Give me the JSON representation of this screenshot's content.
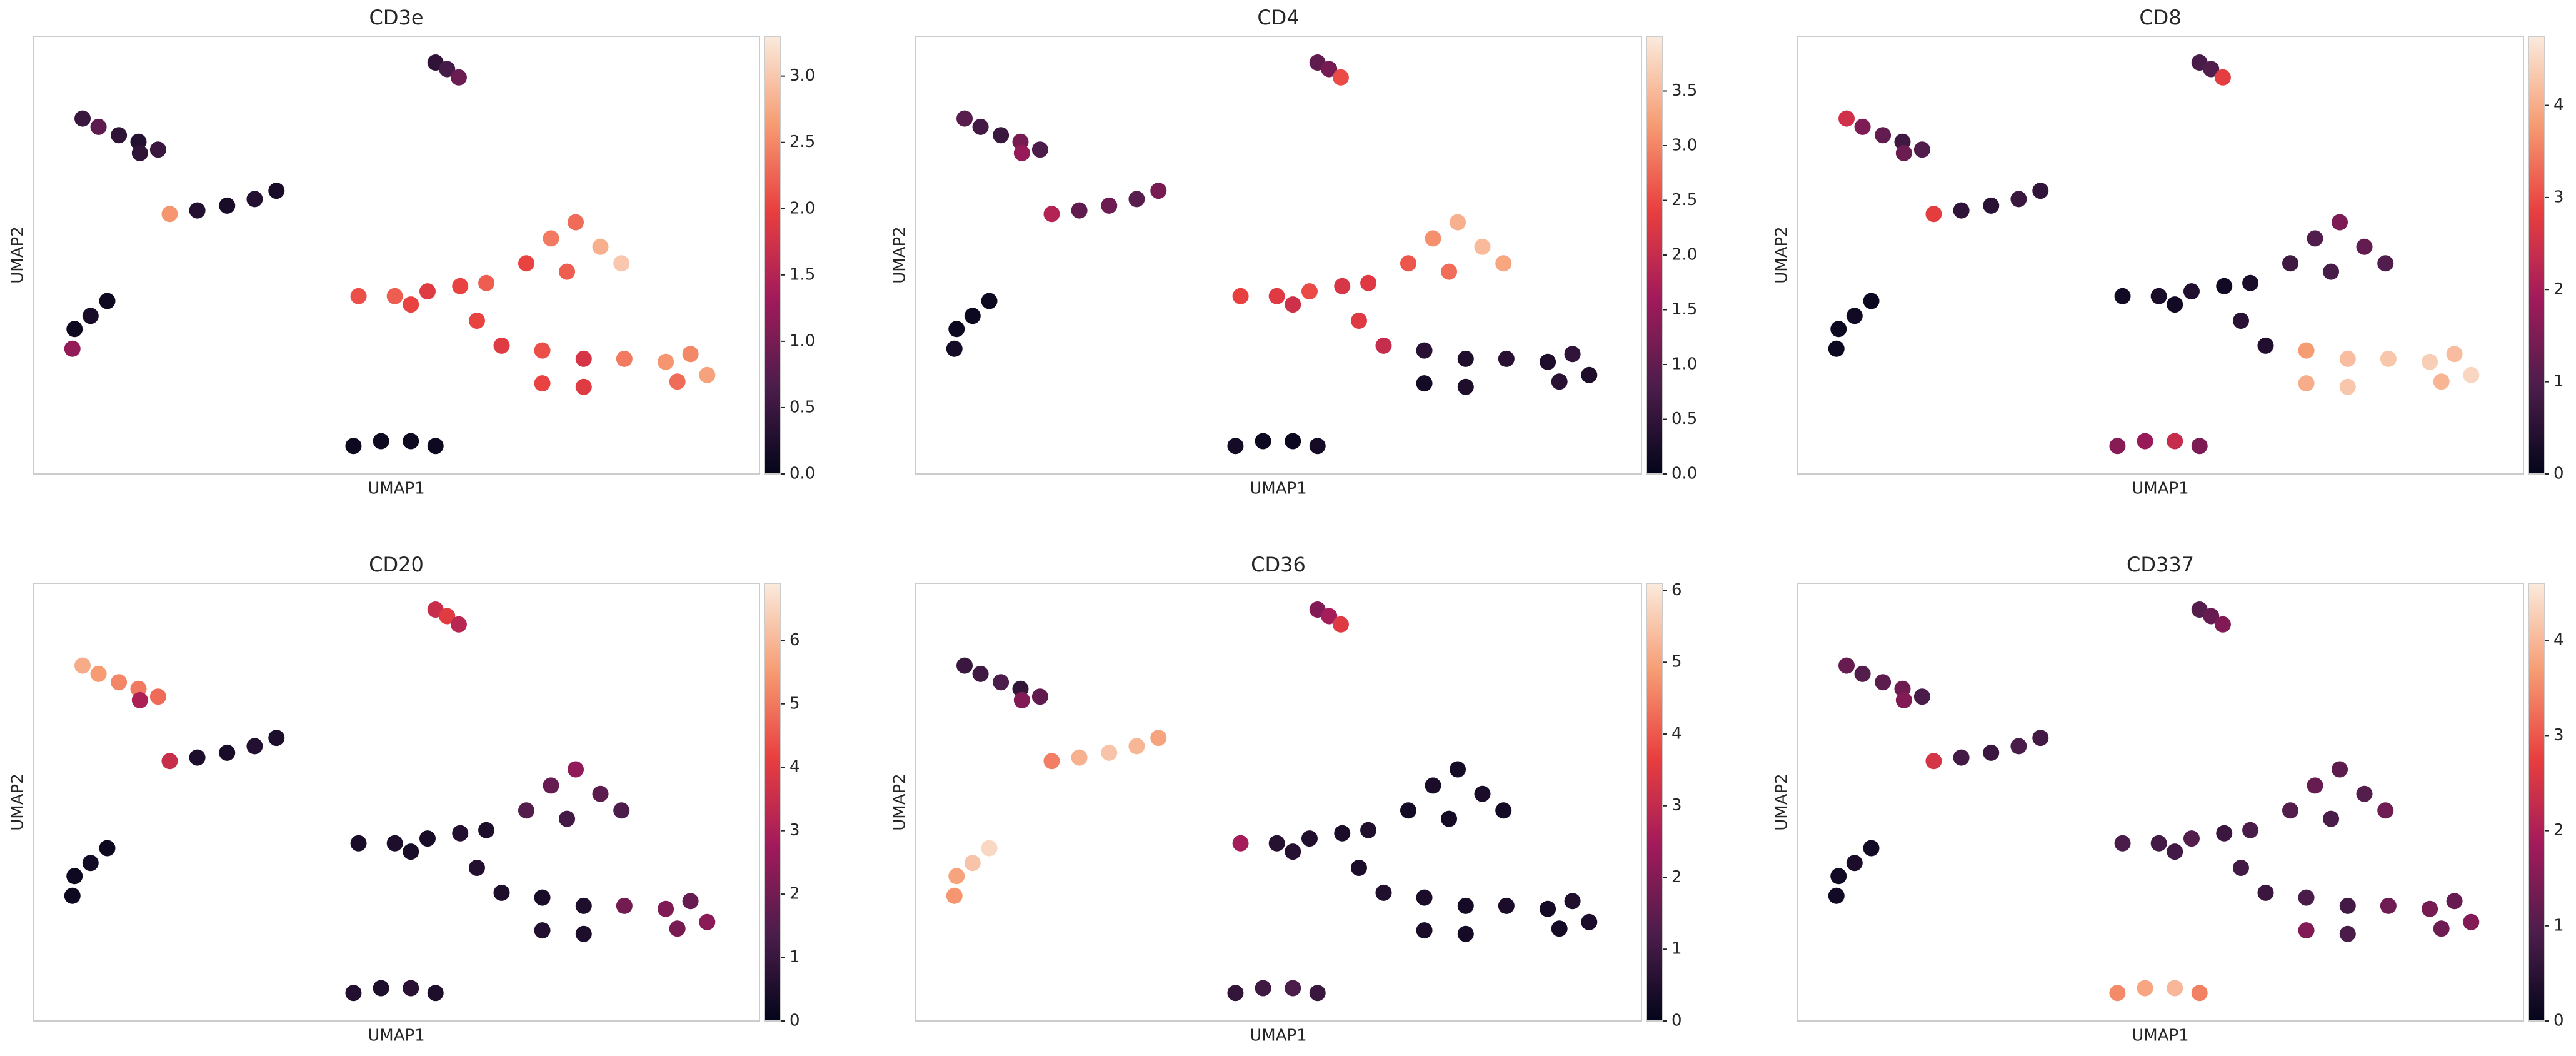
{
  "chart_data": [
    {
      "type": "scatter",
      "title": "CD3e",
      "xlabel": "UMAP1",
      "ylabel": "UMAP2",
      "colormap": "rocket",
      "xlim": [
        0,
        100
      ],
      "ylim": [
        0,
        100
      ],
      "x": [
        55.4,
        57.0,
        58.6,
        6.8,
        9.0,
        11.8,
        14.5,
        17.2,
        14.7,
        18.8,
        22.6,
        26.7,
        30.5,
        33.5,
        10.2,
        7.9,
        5.7,
        5.4,
        44.1,
        47.9,
        52.0,
        55.4,
        44.8,
        49.8,
        54.3,
        58.8,
        62.4,
        52.0,
        67.9,
        71.3,
        74.7,
        78.1,
        81.0,
        73.5,
        61.1,
        64.5,
        70.1,
        75.8,
        70.1,
        75.8,
        81.4,
        87.1,
        90.5,
        92.8,
        88.7
      ],
      "y": [
        94.0,
        92.5,
        90.6,
        81.2,
        79.3,
        77.4,
        75.9,
        74.1,
        73.3,
        59.4,
        60.2,
        61.3,
        62.8,
        64.7,
        39.5,
        36.1,
        33.1,
        28.6,
        6.4,
        7.5,
        7.5,
        6.4,
        40.6,
        40.6,
        41.7,
        42.9,
        43.6,
        38.7,
        48.1,
        53.8,
        57.5,
        51.9,
        48.1,
        46.2,
        35.0,
        29.3,
        28.2,
        26.3,
        20.7,
        19.9,
        26.3,
        25.6,
        27.4,
        22.6,
        21.1
      ],
      "values": [
        0.4,
        0.6,
        0.9,
        0.5,
        0.8,
        0.4,
        0.3,
        0.5,
        0.4,
        2.6,
        0.3,
        0.2,
        0.3,
        0.2,
        0.1,
        0.2,
        0.1,
        1.2,
        0.1,
        0.1,
        0.1,
        0.1,
        2.1,
        2.2,
        1.9,
        2.0,
        2.2,
        2.0,
        2.0,
        2.4,
        2.3,
        2.8,
        3.0,
        2.2,
        2.0,
        1.9,
        2.1,
        1.8,
        2.0,
        1.9,
        2.4,
        2.6,
        2.5,
        2.7,
        2.3
      ],
      "clim": [
        0,
        3.3
      ],
      "cticks": [
        {
          "value": 0,
          "label": "0.0"
        },
        0.5,
        {
          "value": 1,
          "label": "1.0"
        },
        1.5,
        {
          "value": 2,
          "label": "2.0"
        },
        2.5,
        {
          "value": 3,
          "label": "3.0"
        }
      ]
    },
    {
      "type": "scatter",
      "title": "CD4",
      "xlabel": "UMAP1",
      "ylabel": "UMAP2",
      "colormap": "rocket",
      "xlim": [
        0,
        100
      ],
      "ylim": [
        0,
        100
      ],
      "x": [
        55.4,
        57.0,
        58.6,
        6.8,
        9.0,
        11.8,
        14.5,
        17.2,
        14.7,
        18.8,
        22.6,
        26.7,
        30.5,
        33.5,
        10.2,
        7.9,
        5.7,
        5.4,
        44.1,
        47.9,
        52.0,
        55.4,
        44.8,
        49.8,
        54.3,
        58.8,
        62.4,
        52.0,
        67.9,
        71.3,
        74.7,
        78.1,
        81.0,
        73.5,
        61.1,
        64.5,
        70.1,
        75.8,
        70.1,
        75.8,
        81.4,
        87.1,
        90.5,
        92.8,
        88.7
      ],
      "y": [
        94.0,
        92.5,
        90.6,
        81.2,
        79.3,
        77.4,
        75.9,
        74.1,
        73.3,
        59.4,
        60.2,
        61.3,
        62.8,
        64.7,
        39.5,
        36.1,
        33.1,
        28.6,
        6.4,
        7.5,
        7.5,
        6.4,
        40.6,
        40.6,
        41.7,
        42.9,
        43.6,
        38.7,
        48.1,
        53.8,
        57.5,
        51.9,
        48.1,
        46.2,
        35.0,
        29.3,
        28.2,
        26.3,
        20.7,
        19.9,
        26.3,
        25.6,
        27.4,
        22.6,
        21.1
      ],
      "values": [
        1.0,
        1.2,
        2.5,
        0.9,
        0.7,
        0.6,
        1.2,
        0.8,
        1.5,
        1.8,
        1.0,
        1.1,
        0.9,
        1.2,
        0.1,
        0.1,
        0.1,
        0.2,
        0.2,
        0.1,
        0.1,
        0.2,
        2.4,
        2.3,
        2.5,
        2.2,
        2.3,
        2.1,
        2.6,
        3.1,
        3.4,
        3.5,
        3.3,
        2.8,
        2.3,
        2.0,
        0.4,
        0.3,
        0.2,
        0.3,
        0.4,
        0.3,
        0.5,
        0.3,
        0.4
      ],
      "clim": [
        0,
        4.0
      ],
      "cticks": [
        {
          "value": 0,
          "label": "0.0"
        },
        0.5,
        {
          "value": 1,
          "label": "1.0"
        },
        1.5,
        {
          "value": 2,
          "label": "2.0"
        },
        2.5,
        {
          "value": 3,
          "label": "3.0"
        },
        3.5
      ]
    },
    {
      "type": "scatter",
      "title": "CD8",
      "xlabel": "UMAP1",
      "ylabel": "UMAP2",
      "colormap": "rocket",
      "xlim": [
        0,
        100
      ],
      "ylim": [
        0,
        100
      ],
      "x": [
        55.4,
        57.0,
        58.6,
        6.8,
        9.0,
        11.8,
        14.5,
        17.2,
        14.7,
        18.8,
        22.6,
        26.7,
        30.5,
        33.5,
        10.2,
        7.9,
        5.7,
        5.4,
        44.1,
        47.9,
        52.0,
        55.4,
        44.8,
        49.8,
        54.3,
        58.8,
        62.4,
        52.0,
        67.9,
        71.3,
        74.7,
        78.1,
        81.0,
        73.5,
        61.1,
        64.5,
        70.1,
        75.8,
        70.1,
        75.8,
        81.4,
        87.1,
        90.5,
        92.8,
        88.7
      ],
      "y": [
        94.0,
        92.5,
        90.6,
        81.2,
        79.3,
        77.4,
        75.9,
        74.1,
        73.3,
        59.4,
        60.2,
        61.3,
        62.8,
        64.7,
        39.5,
        36.1,
        33.1,
        28.6,
        6.4,
        7.5,
        7.5,
        6.4,
        40.6,
        40.6,
        41.7,
        42.9,
        43.6,
        38.7,
        48.1,
        53.8,
        57.5,
        51.9,
        48.1,
        46.2,
        35.0,
        29.3,
        28.2,
        26.3,
        20.7,
        19.9,
        26.3,
        25.6,
        27.4,
        22.6,
        21.1
      ],
      "values": [
        0.9,
        1.0,
        2.8,
        2.5,
        1.5,
        1.2,
        0.8,
        1.0,
        1.3,
        2.8,
        0.6,
        0.5,
        0.7,
        0.6,
        0.1,
        0.2,
        0.1,
        0.1,
        1.6,
        1.8,
        2.4,
        1.5,
        0.2,
        0.3,
        0.4,
        0.2,
        0.3,
        0.2,
        0.8,
        1.0,
        1.5,
        1.2,
        1.0,
        0.9,
        0.5,
        0.4,
        3.8,
        4.2,
        4.0,
        4.3,
        4.3,
        4.4,
        4.2,
        4.5,
        4.1
      ],
      "clim": [
        0,
        4.75
      ],
      "cticks": [
        0,
        1,
        2,
        3,
        4
      ]
    },
    {
      "type": "scatter",
      "title": "CD20",
      "xlabel": "UMAP1",
      "ylabel": "UMAP2",
      "colormap": "rocket",
      "xlim": [
        0,
        100
      ],
      "ylim": [
        0,
        100
      ],
      "x": [
        55.4,
        57.0,
        58.6,
        6.8,
        9.0,
        11.8,
        14.5,
        17.2,
        14.7,
        18.8,
        22.6,
        26.7,
        30.5,
        33.5,
        10.2,
        7.9,
        5.7,
        5.4,
        44.1,
        47.9,
        52.0,
        55.4,
        44.8,
        49.8,
        54.3,
        58.8,
        62.4,
        52.0,
        67.9,
        71.3,
        74.7,
        78.1,
        81.0,
        73.5,
        61.1,
        64.5,
        70.1,
        75.8,
        70.1,
        75.8,
        81.4,
        87.1,
        90.5,
        92.8,
        88.7
      ],
      "y": [
        94.0,
        92.5,
        90.6,
        81.2,
        79.3,
        77.4,
        75.9,
        74.1,
        73.3,
        59.4,
        60.2,
        61.3,
        62.8,
        64.7,
        39.5,
        36.1,
        33.1,
        28.6,
        6.4,
        7.5,
        7.5,
        6.4,
        40.6,
        40.6,
        41.7,
        42.9,
        43.6,
        38.7,
        48.1,
        53.8,
        57.5,
        51.9,
        48.1,
        46.2,
        35.0,
        29.3,
        28.2,
        26.3,
        20.7,
        19.9,
        26.3,
        25.6,
        27.4,
        22.6,
        21.1
      ],
      "values": [
        3.5,
        4.0,
        3.2,
        5.8,
        5.5,
        5.2,
        5.0,
        4.8,
        3.0,
        3.5,
        0.5,
        0.4,
        0.6,
        0.5,
        0.2,
        0.3,
        0.2,
        0.2,
        0.6,
        0.5,
        0.7,
        0.5,
        0.4,
        0.5,
        0.4,
        0.6,
        0.5,
        0.4,
        1.5,
        1.8,
        2.5,
        1.6,
        1.4,
        1.2,
        0.6,
        0.5,
        0.4,
        0.5,
        0.6,
        0.5,
        2.0,
        2.2,
        1.8,
        2.4,
        2.1
      ],
      "clim": [
        0,
        6.9
      ],
      "cticks": [
        0,
        1,
        2,
        3,
        4,
        5,
        6
      ]
    },
    {
      "type": "scatter",
      "title": "CD36",
      "xlabel": "UMAP1",
      "ylabel": "UMAP2",
      "colormap": "rocket",
      "xlim": [
        0,
        100
      ],
      "ylim": [
        0,
        100
      ],
      "x": [
        55.4,
        57.0,
        58.6,
        6.8,
        9.0,
        11.8,
        14.5,
        17.2,
        14.7,
        18.8,
        22.6,
        26.7,
        30.5,
        33.5,
        10.2,
        7.9,
        5.7,
        5.4,
        44.1,
        47.9,
        52.0,
        55.4,
        44.8,
        49.8,
        54.3,
        58.8,
        62.4,
        52.0,
        67.9,
        71.3,
        74.7,
        78.1,
        81.0,
        73.5,
        61.1,
        64.5,
        70.1,
        75.8,
        70.1,
        75.8,
        81.4,
        87.1,
        90.5,
        92.8,
        88.7
      ],
      "y": [
        94.0,
        92.5,
        90.6,
        81.2,
        79.3,
        77.4,
        75.9,
        74.1,
        73.3,
        59.4,
        60.2,
        61.3,
        62.8,
        64.7,
        39.5,
        36.1,
        33.1,
        28.6,
        6.4,
        7.5,
        7.5,
        6.4,
        40.6,
        40.6,
        41.7,
        42.9,
        43.6,
        38.7,
        48.1,
        53.8,
        57.5,
        51.9,
        48.1,
        46.2,
        35.0,
        29.3,
        28.2,
        26.3,
        20.7,
        19.9,
        26.3,
        25.6,
        27.4,
        22.6,
        21.1
      ],
      "values": [
        2.0,
        2.5,
        3.5,
        0.9,
        1.0,
        1.2,
        0.8,
        1.5,
        2.0,
        4.5,
        5.2,
        5.5,
        5.3,
        5.0,
        5.8,
        5.5,
        5.0,
        4.8,
        0.8,
        1.0,
        1.2,
        0.9,
        2.5,
        0.6,
        0.5,
        0.4,
        0.5,
        0.6,
        0.3,
        0.4,
        0.3,
        0.4,
        0.3,
        0.3,
        0.4,
        0.5,
        0.4,
        0.3,
        0.4,
        0.3,
        0.4,
        0.3,
        0.5,
        0.4,
        0.3
      ],
      "clim": [
        0,
        6.1
      ],
      "cticks": [
        0,
        1,
        2,
        3,
        4,
        5,
        6
      ]
    },
    {
      "type": "scatter",
      "title": "CD337",
      "xlabel": "UMAP1",
      "ylabel": "UMAP2",
      "colormap": "rocket",
      "xlim": [
        0,
        100
      ],
      "ylim": [
        0,
        100
      ],
      "x": [
        55.4,
        57.0,
        58.6,
        6.8,
        9.0,
        11.8,
        14.5,
        17.2,
        14.7,
        18.8,
        22.6,
        26.7,
        30.5,
        33.5,
        10.2,
        7.9,
        5.7,
        5.4,
        44.1,
        47.9,
        52.0,
        55.4,
        44.8,
        49.8,
        54.3,
        58.8,
        62.4,
        52.0,
        67.9,
        71.3,
        74.7,
        78.1,
        81.0,
        73.5,
        61.1,
        64.5,
        70.1,
        75.8,
        70.1,
        75.8,
        81.4,
        87.1,
        90.5,
        92.8,
        88.7
      ],
      "y": [
        94.0,
        92.5,
        90.6,
        81.2,
        79.3,
        77.4,
        75.9,
        74.1,
        73.3,
        59.4,
        60.2,
        61.3,
        62.8,
        64.7,
        39.5,
        36.1,
        33.1,
        28.6,
        6.4,
        7.5,
        7.5,
        6.4,
        40.6,
        40.6,
        41.7,
        42.9,
        43.6,
        38.7,
        48.1,
        53.8,
        57.5,
        51.9,
        48.1,
        46.2,
        35.0,
        29.3,
        28.2,
        26.3,
        20.7,
        19.9,
        26.3,
        25.6,
        27.4,
        22.6,
        21.1
      ],
      "values": [
        1.0,
        1.2,
        1.5,
        1.2,
        1.0,
        1.1,
        1.3,
        0.9,
        1.5,
        2.5,
        0.8,
        0.7,
        0.9,
        0.8,
        0.2,
        0.3,
        0.2,
        0.2,
        3.5,
        3.8,
        4.0,
        3.4,
        0.9,
        0.8,
        1.0,
        0.7,
        0.9,
        0.8,
        1.0,
        1.2,
        1.1,
        1.0,
        1.3,
        0.9,
        0.8,
        0.7,
        0.9,
        0.8,
        1.5,
        0.9,
        1.3,
        1.4,
        1.2,
        1.5,
        1.3
      ],
      "clim": [
        0,
        4.6
      ],
      "cticks": [
        0,
        1,
        2,
        3,
        4
      ]
    }
  ]
}
